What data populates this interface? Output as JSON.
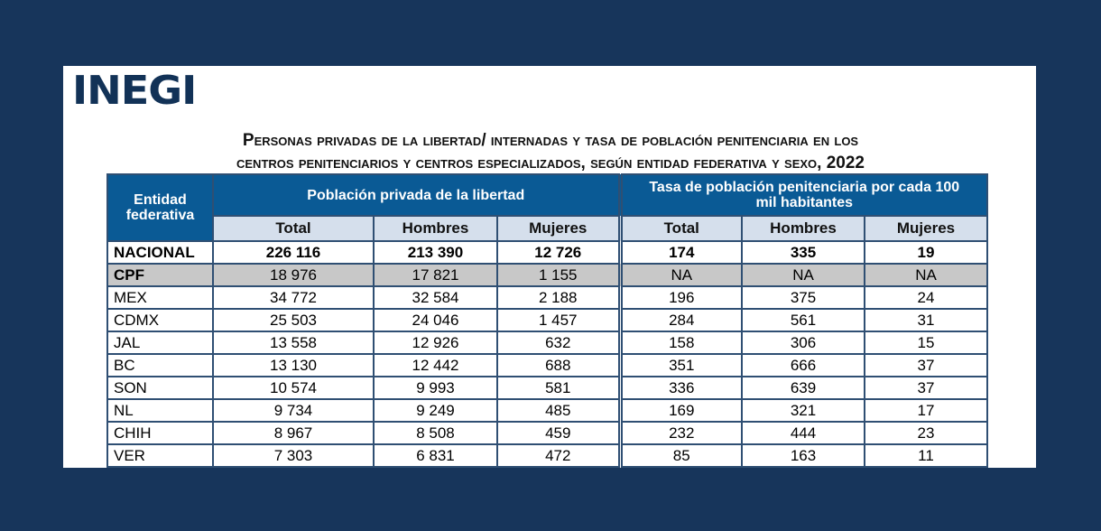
{
  "logo": "INEGI",
  "title": {
    "line1": "Personas privadas de la libertad/ internadas y tasa de población penitenciaria en los",
    "line2": "centros penitenciarios y centros especializados, según entidad federativa y sexo,",
    "year": "2022"
  },
  "headers": {
    "entidad": "Entidad federativa",
    "poblacion": "Población privada de la libertad",
    "tasa": "Tasa de población penitenciaria por cada 100 mil habitantes",
    "sub": [
      "Total",
      "Hombres",
      "Mujeres",
      "Total",
      "Hombres",
      "Mujeres"
    ]
  },
  "rows": [
    [
      "NACIONAL",
      "226 116",
      "213 390",
      "12 726",
      "174",
      "335",
      "19"
    ],
    [
      "CPF",
      "18 976",
      "17 821",
      "1 155",
      "NA",
      "NA",
      "NA"
    ],
    [
      "MEX",
      "34 772",
      "32 584",
      "2 188",
      "196",
      "375",
      "24"
    ],
    [
      "CDMX",
      "25 503",
      "24 046",
      "1 457",
      "284",
      "561",
      "31"
    ],
    [
      "JAL",
      "13 558",
      "12 926",
      "632",
      "158",
      "306",
      "15"
    ],
    [
      "BC",
      "13 130",
      "12 442",
      "688",
      "351",
      "666",
      "37"
    ],
    [
      "SON",
      "10 574",
      "9 993",
      "581",
      "336",
      "639",
      "37"
    ],
    [
      "NL",
      "9 734",
      "9 249",
      "485",
      "169",
      "321",
      "17"
    ],
    [
      "CHIH",
      "8 967",
      "8 508",
      "459",
      "232",
      "444",
      "23"
    ],
    [
      "VER",
      "7 303",
      "6 831",
      "472",
      "85",
      "163",
      "11"
    ]
  ]
}
